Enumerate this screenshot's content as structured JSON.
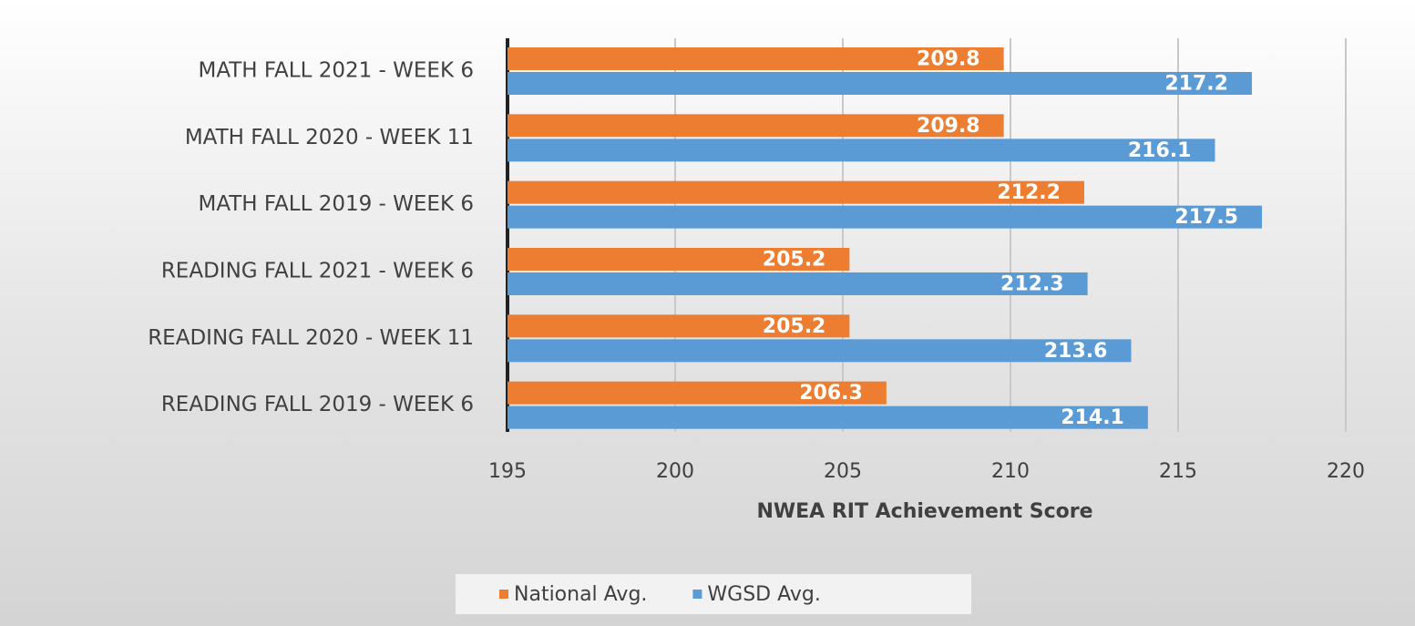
{
  "chart_data": {
    "type": "barh",
    "x_label": "NWEA RIT Achievement Score",
    "categories": [
      "MATH FALL 2021 - WEEK 6",
      "MATH FALL 2020 - WEEK 11",
      "MATH FALL 2019 - WEEK 6",
      "READING FALL 2021 - WEEK 6",
      "READING FALL 2020 - WEEK 11",
      "READING FALL 2019 - WEEK 6"
    ],
    "series": [
      {
        "name": "National Avg.",
        "color": "#ed7d31",
        "values": [
          209.8,
          209.8,
          212.2,
          205.2,
          205.2,
          206.3
        ]
      },
      {
        "name": "WGSD Avg.",
        "color": "#5b9bd5",
        "values": [
          217.2,
          216.1,
          217.5,
          212.3,
          213.6,
          214.1
        ]
      }
    ],
    "xlim": [
      195,
      220
    ],
    "xticks": [
      195,
      200,
      205,
      210,
      215,
      220
    ],
    "grid": true,
    "legend": "bottom"
  }
}
